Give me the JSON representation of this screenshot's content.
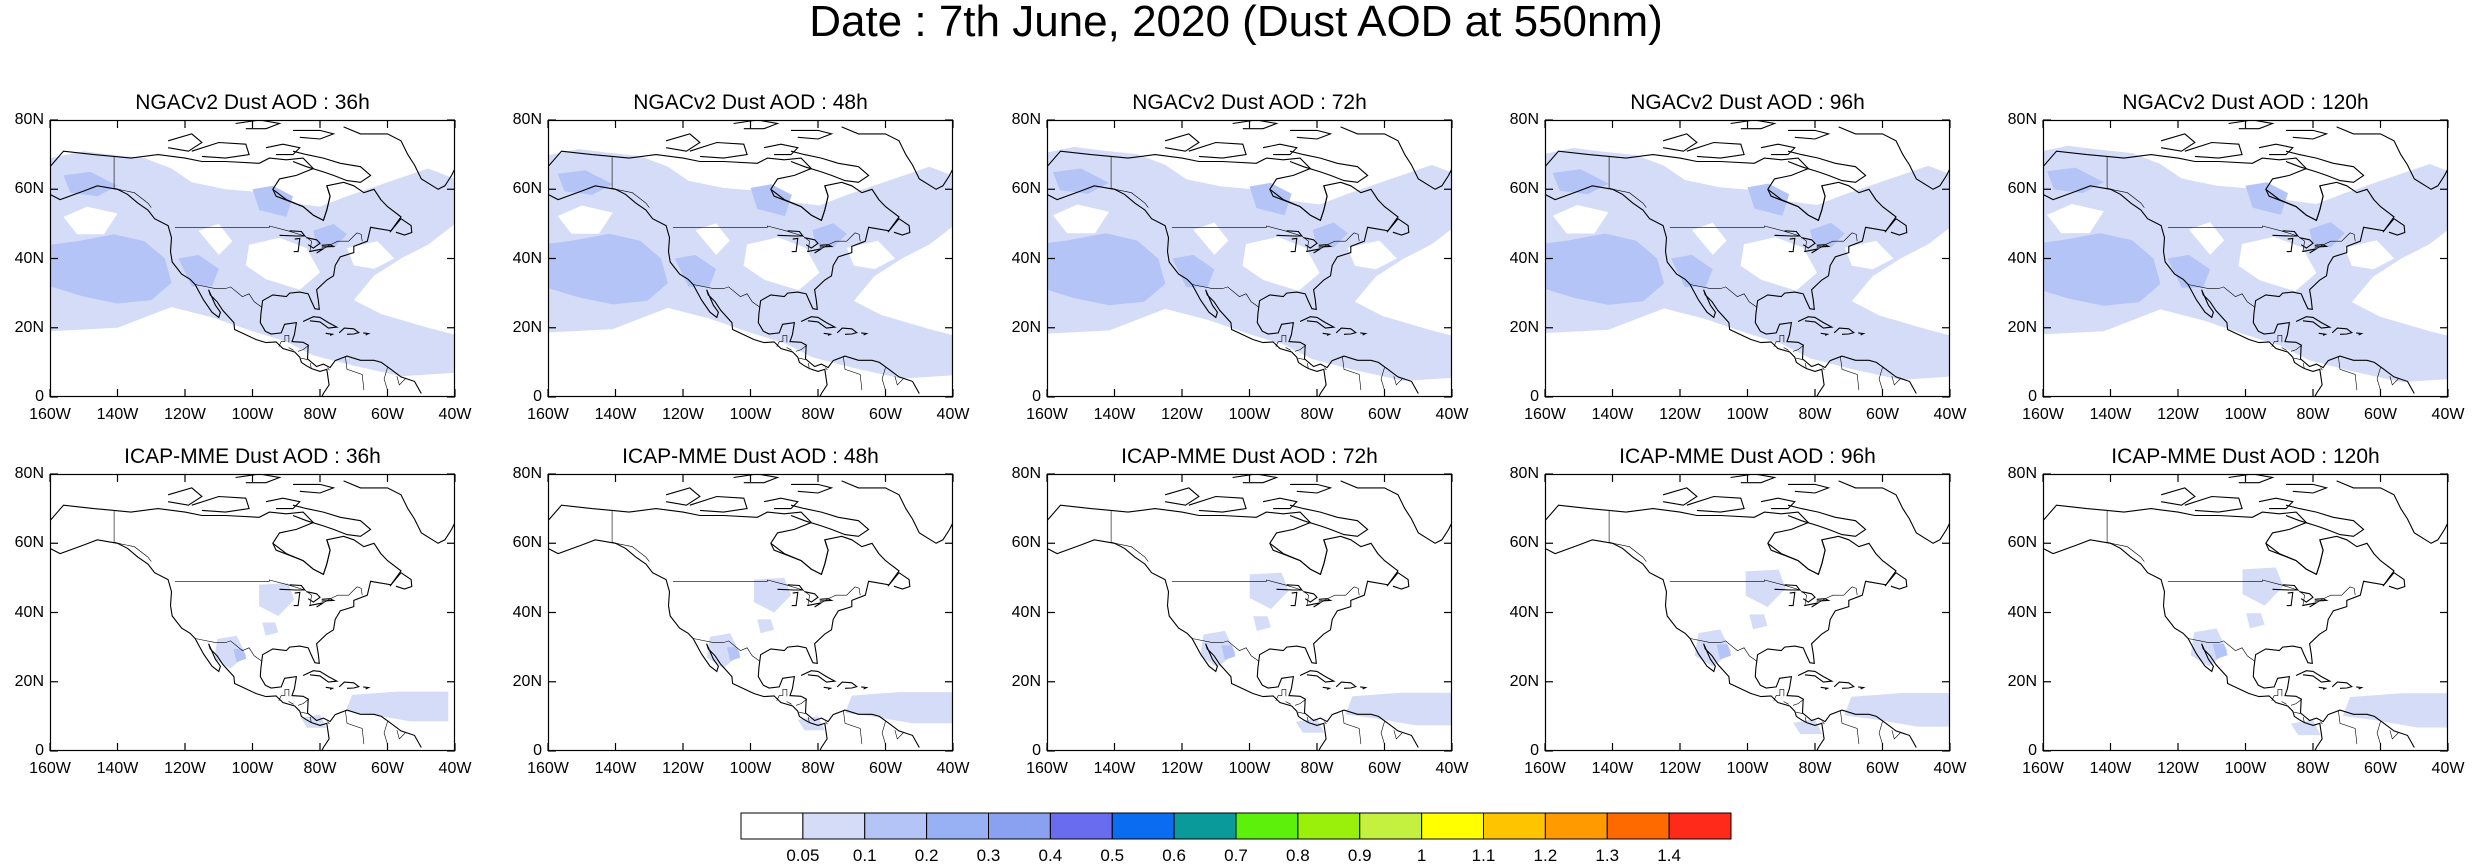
{
  "title": "Date : 7th June, 2020 (Dust AOD at 550nm)",
  "lat_ticks": [
    "80N",
    "60N",
    "40N",
    "20N",
    "0"
  ],
  "lon_ticks": [
    "160W",
    "140W",
    "120W",
    "100W",
    "80W",
    "60W",
    "40W"
  ],
  "panels": [
    {
      "title": "NGACv2 Dust AOD : 36h",
      "model": "NGACv2",
      "lead": "36h"
    },
    {
      "title": "NGACv2 Dust AOD : 48h",
      "model": "NGACv2",
      "lead": "48h"
    },
    {
      "title": "NGACv2 Dust AOD : 72h",
      "model": "NGACv2",
      "lead": "72h"
    },
    {
      "title": "NGACv2 Dust AOD : 96h",
      "model": "NGACv2",
      "lead": "96h"
    },
    {
      "title": "NGACv2 Dust AOD : 120h",
      "model": "NGACv2",
      "lead": "120h"
    },
    {
      "title": "ICAP-MME Dust AOD : 36h",
      "model": "ICAP-MME",
      "lead": "36h"
    },
    {
      "title": "ICAP-MME Dust AOD : 48h",
      "model": "ICAP-MME",
      "lead": "48h"
    },
    {
      "title": "ICAP-MME Dust AOD : 72h",
      "model": "ICAP-MME",
      "lead": "72h"
    },
    {
      "title": "ICAP-MME Dust AOD : 96h",
      "model": "ICAP-MME",
      "lead": "96h"
    },
    {
      "title": "ICAP-MME Dust AOD : 120h",
      "model": "ICAP-MME",
      "lead": "120h"
    }
  ],
  "colorbar": {
    "labels": [
      "0.05",
      "0.1",
      "0.2",
      "0.3",
      "0.4",
      "0.5",
      "0.6",
      "0.7",
      "0.8",
      "0.9",
      "1",
      "1.1",
      "1.2",
      "1.3",
      "1.4"
    ],
    "colors": [
      "#ffffff",
      "#d4dcf8",
      "#b4c4f6",
      "#98b0f4",
      "#8aa0f0",
      "#6a6cf0",
      "#0a6cf0",
      "#0a9a9a",
      "#5cf00a",
      "#9af00a",
      "#c4f040",
      "#ffff00",
      "#ffc400",
      "#ff9a00",
      "#ff6a00",
      "#ff2a1a"
    ]
  },
  "colors": {
    "level1": "#d4dcf8",
    "level2": "#b4c4f6",
    "coast": "#000000"
  }
}
